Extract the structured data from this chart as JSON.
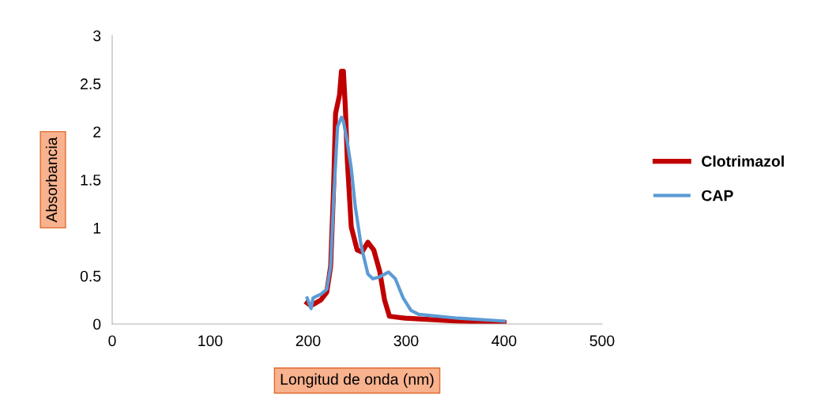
{
  "chart_data": {
    "type": "line",
    "xlabel": "Longitud de onda (nm)",
    "ylabel": "Absorbancia",
    "xlim": [
      0,
      500
    ],
    "xticks": [
      0,
      100,
      200,
      300,
      400,
      500
    ],
    "ylim": [
      0,
      3
    ],
    "yticks": [
      0,
      0.5,
      1,
      1.5,
      2,
      2.5,
      3
    ],
    "grid": false,
    "legend": "right",
    "marker": "none",
    "line_style": "solid",
    "series": [
      {
        "name": "Clotrimazol",
        "color": "#c00000",
        "x": [
          199,
          203,
          208,
          213,
          219,
          223,
          226,
          228,
          232,
          234,
          236,
          238,
          240,
          244,
          250,
          255,
          261,
          267,
          273,
          278,
          283,
          299,
          353,
          400
        ],
        "values": [
          0.22,
          0.19,
          0.22,
          0.25,
          0.33,
          0.6,
          1.42,
          2.19,
          2.38,
          2.63,
          2.63,
          2.25,
          1.7,
          1.01,
          0.77,
          0.75,
          0.85,
          0.77,
          0.55,
          0.25,
          0.08,
          0.06,
          0.03,
          0.015
        ]
      },
      {
        "name": "CAP",
        "color": "#5b9bd5",
        "x": [
          199,
          203,
          205,
          209,
          213,
          219,
          223,
          226,
          230,
          234,
          236,
          240,
          244,
          248,
          254,
          261,
          266,
          273,
          282,
          289,
          297,
          305,
          313,
          353,
          400
        ],
        "values": [
          0.27,
          0.16,
          0.27,
          0.29,
          0.31,
          0.36,
          0.6,
          1.29,
          2.05,
          2.15,
          2.11,
          1.89,
          1.62,
          1.23,
          0.82,
          0.52,
          0.47,
          0.49,
          0.54,
          0.47,
          0.27,
          0.14,
          0.1,
          0.06,
          0.03
        ]
      }
    ]
  }
}
